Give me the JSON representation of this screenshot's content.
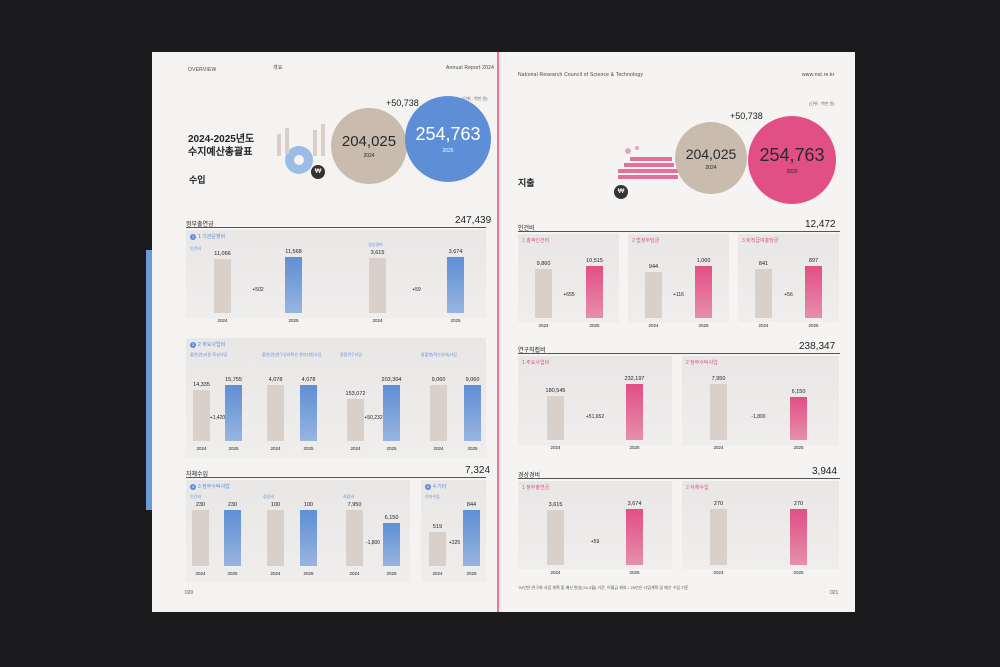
{
  "colors": {
    "blue": "#5e8fd6",
    "pink": "#e14f84",
    "taupe": "#c8bcb0",
    "grey_bar": "#d9d0c9"
  },
  "left": {
    "header_left": "OVERVIEW",
    "header_mid": "개요",
    "header_right": "Annual Report 2024",
    "unit": "(단위 : 백만 원)",
    "title_line1": "2024-2025년도",
    "title_line2": "수지예산총괄표",
    "section": "수입",
    "circle_2024": "204,025",
    "circle_2025": "254,763",
    "year_2024": "2024",
    "year_2025": "2025",
    "delta": "+50,738",
    "coin_icon": "won-coin-icon",
    "page_number": "020"
  },
  "right": {
    "header_left": "National Research Council of Science & Technology",
    "header_right": "www.nst.re.kr",
    "unit": "(단위 : 백만 원)",
    "section": "지출",
    "circle_2024": "204,025",
    "circle_2025": "254,763",
    "year_2024": "2024",
    "year_2025": "2025",
    "delta": "+50,738",
    "coin_icon": "won-coin-icon",
    "footnote": "'24년은 연구회 사업 계획 및 예산 편성('24.3월) 기준, 이월금 제외 / '25년은 사업계획 및 예산 수립 기준",
    "page_number": "021"
  },
  "chart_data": [
    {
      "type": "bar",
      "title": "정부출연금",
      "total": "247,439",
      "panel": "1 기관운영비",
      "groups": [
        {
          "label": "인건비",
          "categories": [
            "2024",
            "2025"
          ],
          "values": [
            11066,
            11568
          ],
          "diff": "+502"
        },
        {
          "label": "경상경비",
          "categories": [
            "2024",
            "2025"
          ],
          "values": [
            3615,
            3674
          ],
          "diff": "+59"
        }
      ]
    },
    {
      "type": "bar",
      "panel": "2 주요사업비",
      "groups": [
        {
          "label": "출연(연)지원·육성사업",
          "categories": [
            "2024",
            "2025"
          ],
          "values": [
            14335,
            15755
          ],
          "diff": "+1,420"
        },
        {
          "label": "출연(연)연구성과확산·관리지원사업",
          "categories": [
            "2024",
            "2025"
          ],
          "values": [
            4078,
            4078
          ],
          "diff": ""
        },
        {
          "label": "융합연구사업",
          "categories": [
            "2024",
            "2025"
          ],
          "values": [
            153072,
            203304
          ],
          "diff": "+50,232"
        },
        {
          "label": "창출형(혁신성과)사업",
          "categories": [
            "2024",
            "2025"
          ],
          "values": [
            9060,
            9060
          ],
          "diff": ""
        }
      ]
    },
    {
      "type": "bar",
      "title": "자체수입",
      "total": "7,324",
      "panel": "3 정부수탁사업",
      "groups": [
        {
          "label": "인건비",
          "categories": [
            "2024",
            "2025"
          ],
          "values": [
            230,
            230
          ],
          "diff": ""
        },
        {
          "label": "경상비",
          "categories": [
            "2024",
            "2025"
          ],
          "values": [
            100,
            100
          ],
          "diff": ""
        },
        {
          "label": "직접비",
          "categories": [
            "2024",
            "2025"
          ],
          "values": [
            7950,
            6150
          ],
          "diff": "-1,800"
        }
      ]
    },
    {
      "type": "bar",
      "panel": "4 기타",
      "groups": [
        {
          "label": "이자수입",
          "categories": [
            "2024",
            "2025"
          ],
          "values": [
            519,
            844
          ],
          "diff": "+325"
        }
      ]
    },
    {
      "type": "bar",
      "title": "인건비",
      "total": "12,472",
      "groups": [
        {
          "label": "1 총액인건비",
          "categories": [
            "2024",
            "2025"
          ],
          "values": [
            9860,
            10515
          ],
          "diff": "+655"
        },
        {
          "label": "2 법정부담금",
          "categories": [
            "2024",
            "2025"
          ],
          "values": [
            944,
            1060
          ],
          "diff": "+116"
        },
        {
          "label": "3 퇴직급여충당금",
          "categories": [
            "2024",
            "2025"
          ],
          "values": [
            841,
            897
          ],
          "diff": "+56"
        }
      ]
    },
    {
      "type": "bar",
      "title": "연구직접비",
      "total": "238,347",
      "groups": [
        {
          "label": "1 주요사업비",
          "categories": [
            "2024",
            "2025"
          ],
          "values": [
            180545,
            232197
          ],
          "diff": "+51,652"
        },
        {
          "label": "2 정부수탁사업",
          "categories": [
            "2024",
            "2025"
          ],
          "values": [
            7950,
            6150
          ],
          "diff": "-1,800"
        }
      ]
    },
    {
      "type": "bar",
      "title": "경상경비",
      "total": "3,944",
      "groups": [
        {
          "label": "1 정부출연금",
          "categories": [
            "2024",
            "2025"
          ],
          "values": [
            3615,
            3674
          ],
          "diff": "+59"
        },
        {
          "label": "2 자체수입",
          "categories": [
            "2024",
            "2025"
          ],
          "values": [
            270,
            270
          ],
          "diff": ""
        }
      ]
    }
  ]
}
